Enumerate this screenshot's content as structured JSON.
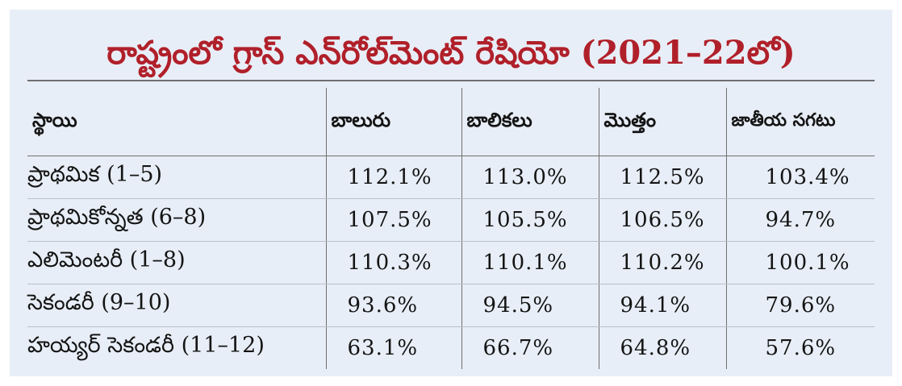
{
  "title": "రాష్ట్రంలో గ్రాస్ ఎన్‌రోల్‌మెంట్ రేషియో (2021–22లో)",
  "columns": {
    "level": "స్థాయి",
    "boys": "బాలురు",
    "girls": "బాలికలు",
    "total": "మొత్తం",
    "national_avg": "జాతీయ సగటు"
  },
  "rows": [
    {
      "level": "ప్రాథమిక (1–5)",
      "boys": "112.1%",
      "girls": "113.0%",
      "total": "112.5%",
      "national_avg": "103.4%"
    },
    {
      "level": "ప్రాథమికోన్నత (6–8)",
      "boys": "107.5%",
      "girls": "105.5%",
      "total": "106.5%",
      "national_avg": "94.7%"
    },
    {
      "level": "ఎలిమెంటరీ (1–8)",
      "boys": "110.3%",
      "girls": "110.1%",
      "total": "110.2%",
      "national_avg": "100.1%"
    },
    {
      "level": "సెకండరీ (9–10)",
      "boys": "93.6%",
      "girls": "94.5%",
      "total": "94.1%",
      "national_avg": "79.6%"
    },
    {
      "level": "హయ్యర్ సెకండరీ (11–12)",
      "boys": "63.1%",
      "girls": "66.7%",
      "total": "64.8%",
      "national_avg": "57.6%"
    }
  ],
  "colors": {
    "title": "#b0202a",
    "panel_background": "#e8eef7",
    "text": "#141414",
    "rule": "#6f6f6f"
  }
}
